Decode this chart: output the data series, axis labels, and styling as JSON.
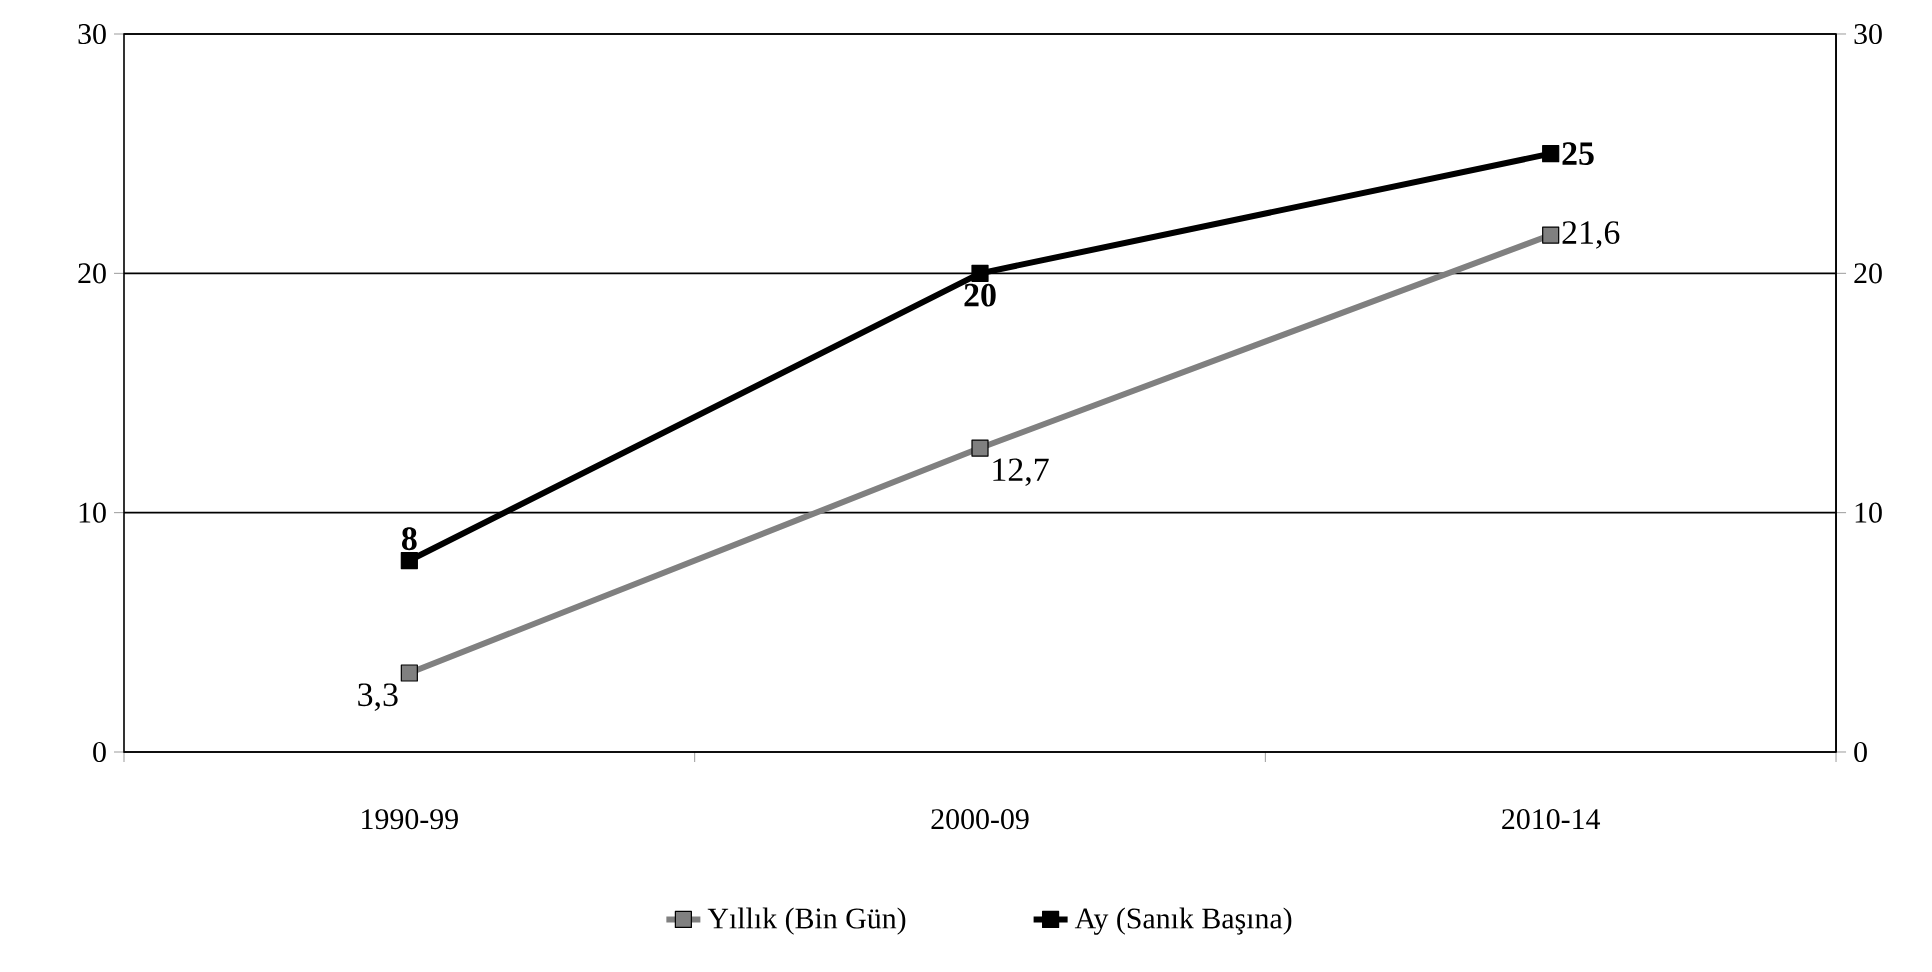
{
  "chart_data": {
    "type": "line",
    "categories": [
      "1990-99",
      "2000-09",
      "2010-14"
    ],
    "series": [
      {
        "name": "Yıllık (Bin Gün)",
        "color": "#808080",
        "values": [
          3.3,
          12.7,
          21.6
        ],
        "value_labels": [
          "3,3",
          "12,7",
          "21,6"
        ]
      },
      {
        "name": "Ay (Sanık Başına)",
        "color": "#000000",
        "values": [
          8,
          20,
          25
        ],
        "value_labels": [
          "8",
          "20",
          "25"
        ]
      }
    ],
    "ylim": [
      0,
      30
    ],
    "yticks": [
      0,
      10,
      20,
      30
    ],
    "y2lim": [
      0,
      30
    ],
    "y2ticks": [
      0,
      10,
      20,
      30
    ],
    "grid": "y",
    "legend": "bottom",
    "marker": "square",
    "line_style": "solid"
  }
}
